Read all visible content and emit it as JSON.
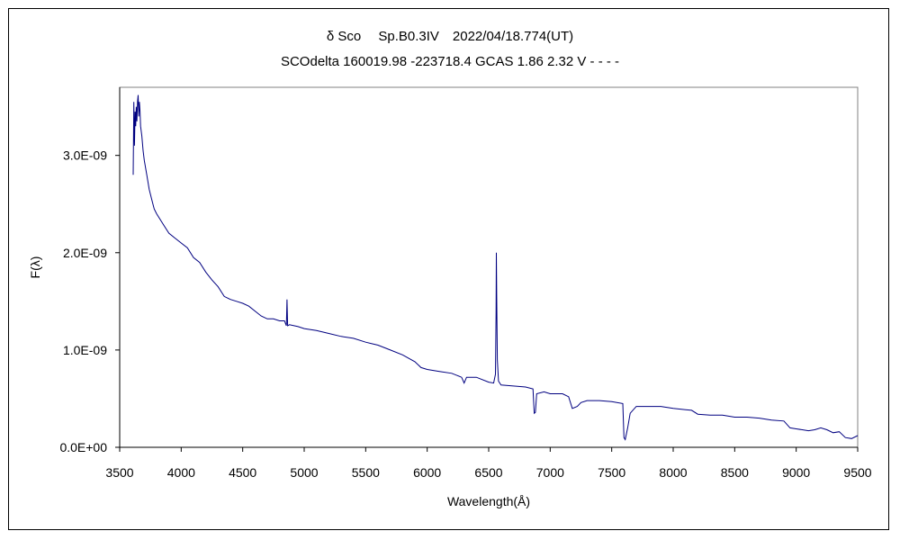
{
  "chart_data": {
    "type": "line",
    "title": "δ Sco　 Sp.B0.3IV　2022/04/18.774(UT)",
    "subtitle": "SCOdelta 160019.98 -223718.4 GCAS 1.86 2.32 V - - - -",
    "xlabel": "Wavelength(Å)",
    "ylabel": "F(λ)",
    "xlim": [
      3500,
      9500
    ],
    "ylim": [
      0,
      3.7e-09
    ],
    "xticks": [
      "3500",
      "4000",
      "4500",
      "5000",
      "5500",
      "6000",
      "6500",
      "7000",
      "7500",
      "8000",
      "8500",
      "9000",
      "9500"
    ],
    "yticks": [
      {
        "value": 0,
        "label": "0.0E+00"
      },
      {
        "value": 1e-09,
        "label": "1.0E-09"
      },
      {
        "value": 2e-09,
        "label": "2.0E-09"
      },
      {
        "value": 3e-09,
        "label": "3.0E-09"
      }
    ],
    "grid": false,
    "series_color": "#000080",
    "series": [
      {
        "points": [
          [
            3610,
            2.8e-09
          ],
          [
            3615,
            3.55e-09
          ],
          [
            3620,
            3.1e-09
          ],
          [
            3625,
            3.45e-09
          ],
          [
            3630,
            3.3e-09
          ],
          [
            3635,
            3.5e-09
          ],
          [
            3640,
            3.35e-09
          ],
          [
            3645,
            3.55e-09
          ],
          [
            3650,
            3.62e-09
          ],
          [
            3655,
            3.4e-09
          ],
          [
            3660,
            3.55e-09
          ],
          [
            3665,
            3.45e-09
          ],
          [
            3670,
            3.3e-09
          ],
          [
            3680,
            3.2e-09
          ],
          [
            3690,
            3.05e-09
          ],
          [
            3700,
            2.95e-09
          ],
          [
            3720,
            2.8e-09
          ],
          [
            3740,
            2.65e-09
          ],
          [
            3760,
            2.55e-09
          ],
          [
            3780,
            2.45e-09
          ],
          [
            3800,
            2.4e-09
          ],
          [
            3850,
            2.3e-09
          ],
          [
            3900,
            2.2e-09
          ],
          [
            3950,
            2.15e-09
          ],
          [
            4000,
            2.1e-09
          ],
          [
            4050,
            2.05e-09
          ],
          [
            4100,
            1.95e-09
          ],
          [
            4150,
            1.9e-09
          ],
          [
            4200,
            1.8e-09
          ],
          [
            4250,
            1.72e-09
          ],
          [
            4300,
            1.65e-09
          ],
          [
            4350,
            1.55e-09
          ],
          [
            4400,
            1.52e-09
          ],
          [
            4450,
            1.5e-09
          ],
          [
            4500,
            1.48e-09
          ],
          [
            4550,
            1.45e-09
          ],
          [
            4600,
            1.4e-09
          ],
          [
            4650,
            1.35e-09
          ],
          [
            4700,
            1.32e-09
          ],
          [
            4750,
            1.32e-09
          ],
          [
            4800,
            1.3e-09
          ],
          [
            4840,
            1.3e-09
          ],
          [
            4855,
            1.25e-09
          ],
          [
            4860,
            1.52e-09
          ],
          [
            4865,
            1.25e-09
          ],
          [
            4880,
            1.26e-09
          ],
          [
            4950,
            1.24e-09
          ],
          [
            5000,
            1.22e-09
          ],
          [
            5100,
            1.2e-09
          ],
          [
            5200,
            1.17e-09
          ],
          [
            5300,
            1.14e-09
          ],
          [
            5400,
            1.12e-09
          ],
          [
            5500,
            1.08e-09
          ],
          [
            5600,
            1.05e-09
          ],
          [
            5700,
            1e-09
          ],
          [
            5800,
            9.5e-10
          ],
          [
            5900,
            8.8e-10
          ],
          [
            5950,
            8.2e-10
          ],
          [
            6000,
            8e-10
          ],
          [
            6100,
            7.8e-10
          ],
          [
            6200,
            7.6e-10
          ],
          [
            6280,
            7.2e-10
          ],
          [
            6300,
            6.6e-10
          ],
          [
            6320,
            7.2e-10
          ],
          [
            6400,
            7.2e-10
          ],
          [
            6500,
            6.7e-10
          ],
          [
            6540,
            6.6e-10
          ],
          [
            6555,
            7.5e-10
          ],
          [
            6560,
            1.38e-09
          ],
          [
            6562,
            2e-09
          ],
          [
            6565,
            1.55e-09
          ],
          [
            6570,
            9e-10
          ],
          [
            6580,
            6.8e-10
          ],
          [
            6600,
            6.4e-10
          ],
          [
            6700,
            6.3e-10
          ],
          [
            6800,
            6.2e-10
          ],
          [
            6860,
            6e-10
          ],
          [
            6870,
            3.5e-10
          ],
          [
            6880,
            3.6e-10
          ],
          [
            6890,
            5.5e-10
          ],
          [
            6950,
            5.7e-10
          ],
          [
            7000,
            5.5e-10
          ],
          [
            7100,
            5.5e-10
          ],
          [
            7150,
            5.2e-10
          ],
          [
            7180,
            4e-10
          ],
          [
            7220,
            4.2e-10
          ],
          [
            7250,
            4.6e-10
          ],
          [
            7300,
            4.8e-10
          ],
          [
            7400,
            4.8e-10
          ],
          [
            7500,
            4.7e-10
          ],
          [
            7590,
            4.5e-10
          ],
          [
            7600,
            1e-10
          ],
          [
            7610,
            8e-11
          ],
          [
            7630,
            2e-10
          ],
          [
            7650,
            3.5e-10
          ],
          [
            7700,
            4.2e-10
          ],
          [
            7800,
            4.2e-10
          ],
          [
            7900,
            4.2e-10
          ],
          [
            8000,
            4e-10
          ],
          [
            8150,
            3.8e-10
          ],
          [
            8200,
            3.4e-10
          ],
          [
            8300,
            3.3e-10
          ],
          [
            8400,
            3.3e-10
          ],
          [
            8500,
            3.1e-10
          ],
          [
            8600,
            3.1e-10
          ],
          [
            8700,
            3e-10
          ],
          [
            8800,
            2.8e-10
          ],
          [
            8900,
            2.7e-10
          ],
          [
            8950,
            2e-10
          ],
          [
            9000,
            1.9e-10
          ],
          [
            9100,
            1.7e-10
          ],
          [
            9150,
            1.8e-10
          ],
          [
            9200,
            2e-10
          ],
          [
            9250,
            1.8e-10
          ],
          [
            9300,
            1.5e-10
          ],
          [
            9350,
            1.6e-10
          ],
          [
            9400,
            1e-10
          ],
          [
            9450,
            9e-11
          ],
          [
            9500,
            1.2e-10
          ]
        ]
      }
    ]
  }
}
